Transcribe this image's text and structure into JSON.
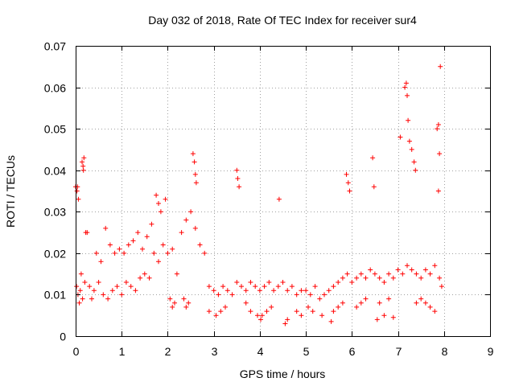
{
  "chart_data": {
    "type": "scatter",
    "title": "Day 032 of 2018, Rate Of TEC Index for receiver sur4",
    "xlabel": "GPS time / hours",
    "ylabel": "ROTI / TECUs",
    "xlim": [
      0,
      9
    ],
    "ylim": [
      0,
      0.07
    ],
    "xticks": [
      "0",
      "1",
      "2",
      "3",
      "4",
      "5",
      "6",
      "7",
      "8",
      "9"
    ],
    "yticks": [
      "0",
      "0.01",
      "0.02",
      "0.03",
      "0.04",
      "0.05",
      "0.06",
      "0.07"
    ],
    "grid": true,
    "legend": "none",
    "marker": "plus",
    "series": [
      {
        "name": "ROTI",
        "color": "#ff0000",
        "x": [
          0.02,
          0.05,
          0.1,
          0.15,
          0.2,
          0.08,
          0.12,
          0.04,
          0.06,
          0.14,
          0.18,
          0.22,
          0.3,
          0.35,
          0.4,
          0.5,
          0.6,
          0.7,
          0.8,
          0.9,
          1.0,
          1.1,
          1.2,
          1.3,
          1.4,
          1.5,
          1.6,
          1.7,
          1.8,
          1.9,
          2.0,
          2.1,
          2.2,
          2.3,
          2.4,
          2.5,
          2.6,
          2.7,
          2.8,
          2.9,
          3.0,
          3.1,
          3.2,
          3.3,
          3.4,
          3.5,
          3.6,
          3.7,
          3.8,
          3.9,
          4.0,
          4.1,
          4.2,
          4.3,
          4.4,
          4.5,
          4.6,
          4.7,
          4.8,
          4.9,
          5.0,
          5.1,
          5.2,
          5.3,
          5.4,
          5.5,
          5.6,
          5.7,
          5.8,
          5.9,
          6.0,
          6.1,
          6.2,
          6.3,
          6.4,
          6.5,
          6.6,
          6.7,
          6.8,
          6.9,
          7.0,
          7.1,
          7.2,
          7.3,
          7.4,
          7.5,
          7.6,
          7.7,
          7.8,
          7.9,
          7.95,
          0.0,
          0.03,
          0.16,
          0.17,
          1.75,
          1.8,
          1.85,
          2.55,
          2.58,
          2.6,
          2.62,
          3.5,
          3.52,
          3.55,
          4.42,
          5.88,
          5.92,
          5.95,
          6.45,
          6.48,
          7.05,
          7.15,
          7.18,
          7.2,
          7.22,
          7.25,
          7.3,
          7.35,
          7.38,
          7.85,
          7.88,
          7.9,
          7.92,
          7.88,
          4.02,
          4.05,
          4.55,
          4.6,
          5.55,
          6.55,
          6.7,
          6.9,
          2.05,
          2.1,
          2.15,
          2.35,
          2.4,
          2.45,
          2.9,
          3.05,
          3.15,
          3.25,
          3.7,
          3.8,
          3.95,
          4.15,
          4.25,
          4.8,
          4.9,
          5.05,
          5.15,
          5.35,
          5.6,
          5.7,
          5.8,
          6.1,
          6.2,
          6.3,
          6.6,
          6.8,
          7.4,
          7.5,
          7.6,
          7.7,
          7.8,
          0.25,
          0.45,
          0.55,
          0.65,
          0.75,
          0.85,
          0.95,
          1.05,
          1.15,
          1.25,
          1.35,
          1.45,
          1.55,
          1.65,
          1.95
        ],
        "y": [
          0.012,
          0.01,
          0.011,
          0.009,
          0.013,
          0.008,
          0.015,
          0.036,
          0.033,
          0.042,
          0.043,
          0.025,
          0.012,
          0.009,
          0.011,
          0.013,
          0.01,
          0.009,
          0.011,
          0.012,
          0.01,
          0.013,
          0.012,
          0.011,
          0.014,
          0.015,
          0.014,
          0.02,
          0.018,
          0.022,
          0.02,
          0.021,
          0.015,
          0.025,
          0.028,
          0.03,
          0.026,
          0.022,
          0.02,
          0.012,
          0.011,
          0.01,
          0.012,
          0.011,
          0.01,
          0.013,
          0.012,
          0.011,
          0.013,
          0.012,
          0.011,
          0.012,
          0.013,
          0.011,
          0.012,
          0.013,
          0.011,
          0.012,
          0.01,
          0.011,
          0.011,
          0.01,
          0.012,
          0.009,
          0.01,
          0.011,
          0.012,
          0.013,
          0.014,
          0.015,
          0.013,
          0.014,
          0.015,
          0.014,
          0.016,
          0.015,
          0.014,
          0.013,
          0.015,
          0.014,
          0.016,
          0.015,
          0.017,
          0.016,
          0.015,
          0.014,
          0.016,
          0.015,
          0.017,
          0.014,
          0.012,
          0.036,
          0.035,
          0.041,
          0.04,
          0.034,
          0.032,
          0.03,
          0.044,
          0.042,
          0.039,
          0.037,
          0.04,
          0.038,
          0.036,
          0.033,
          0.039,
          0.037,
          0.035,
          0.043,
          0.036,
          0.048,
          0.06,
          0.061,
          0.058,
          0.052,
          0.047,
          0.045,
          0.042,
          0.04,
          0.05,
          0.051,
          0.044,
          0.065,
          0.035,
          0.004,
          0.005,
          0.003,
          0.004,
          0.0035,
          0.004,
          0.005,
          0.0045,
          0.009,
          0.007,
          0.008,
          0.009,
          0.007,
          0.008,
          0.006,
          0.005,
          0.006,
          0.007,
          0.008,
          0.006,
          0.005,
          0.006,
          0.007,
          0.006,
          0.005,
          0.007,
          0.006,
          0.005,
          0.006,
          0.007,
          0.008,
          0.007,
          0.008,
          0.009,
          0.008,
          0.009,
          0.008,
          0.009,
          0.008,
          0.007,
          0.006,
          0.025,
          0.02,
          0.018,
          0.026,
          0.022,
          0.02,
          0.021,
          0.02,
          0.022,
          0.023,
          0.025,
          0.021,
          0.024,
          0.027,
          0.033
        ]
      }
    ]
  }
}
